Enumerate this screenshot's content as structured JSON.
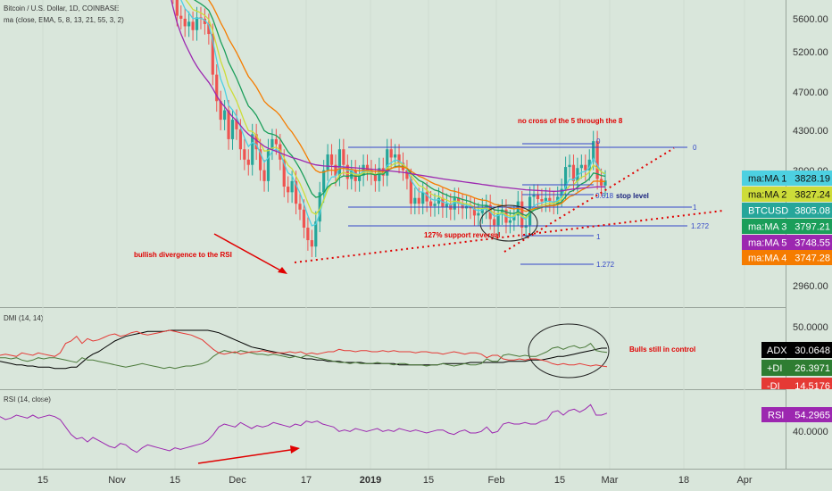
{
  "header": {
    "symbol_line": "Bitcoin / U.S. Dollar, 1D, COINBASE",
    "ma_line": "ma (close, EMA, 5, 8, 13, 21, 55, 3, 2)"
  },
  "panes": {
    "dmi_title": "DMI (14, 14)",
    "rsi_title": "RSI (14, close)"
  },
  "colors": {
    "background": "#d9e6db",
    "up_candle": "#26a69a",
    "down_candle": "#ef5350",
    "ema5": "#4dd0e1",
    "ema8": "#cddc39",
    "ema13": "#1b9e5a",
    "ema21": "#f57c00",
    "ema55": "#9c27b0",
    "annotation": "#e00000",
    "fib": "#3347c8",
    "rsi": "#9c27b0"
  },
  "annotations": {
    "no_cross": "no cross of the 5 through the 8",
    "bullish_div": "bullish divergence to the RSI",
    "support_reversal": "127% support reversal",
    "stop_level": "stop level",
    "bulls_control": "Bulls still in control"
  },
  "fib_labels": {
    "a_zero": "0",
    "a_618": "0.618",
    "a_one": "1",
    "a_1272": "1.272",
    "b_zero": "0",
    "b_one": "1",
    "b_1272": "1.272"
  },
  "chart_data": {
    "type": "candlestick",
    "price_axis_ticks": [
      "5600.00",
      "5200.00",
      "4700.00",
      "4300.00",
      "3900.00",
      "3420.00",
      "2960.00"
    ],
    "dmi_axis_ticks": [
      "50.0000"
    ],
    "rsi_axis_ticks": [
      "40.0000"
    ],
    "time_axis_labels": [
      "15",
      "Nov",
      "15",
      "Dec",
      "17",
      "2019",
      "15",
      "Feb",
      "15",
      "Mar",
      "18",
      "Apr"
    ],
    "price_badges": [
      {
        "label": "ma:MA 1",
        "value": "3828.19",
        "color": "#4dd0e1",
        "text": "#111111"
      },
      {
        "label": "ma:MA 2",
        "value": "3827.24",
        "color": "#cddc39",
        "text": "#111111"
      },
      {
        "label": "BTCUSD",
        "value": "3805.08",
        "color": "#26a69a",
        "text": "#ffffff"
      },
      {
        "label": "ma:MA 3",
        "value": "3797.21",
        "color": "#1b9e5a",
        "text": "#ffffff"
      },
      {
        "label": "ma:MA 5",
        "value": "3748.55",
        "color": "#9c27b0",
        "text": "#ffffff"
      },
      {
        "label": "ma:MA 4",
        "value": "3747.28",
        "color": "#f57c00",
        "text": "#ffffff"
      }
    ],
    "dmi_badges": [
      {
        "label": "ADX",
        "value": "30.0648",
        "color": "#000000"
      },
      {
        "label": "+DI",
        "value": "26.3971",
        "color": "#2e7d32"
      },
      {
        "label": "-DI",
        "value": "14.5176",
        "color": "#e53935"
      }
    ],
    "rsi_badges": [
      {
        "label": "RSI",
        "value": "54.2965",
        "color": "#9c27b0"
      }
    ],
    "price_closes": [
      6350,
      6100,
      5950,
      5640,
      5600,
      5500,
      5560,
      5450,
      5620,
      5600,
      5530,
      5400,
      4900,
      4600,
      4400,
      4500,
      4200,
      4400,
      4300,
      4100,
      4000,
      3950,
      4250,
      4100,
      3900,
      3800,
      4100,
      4200,
      4150,
      4000,
      3750,
      3700,
      3800,
      3600,
      3550,
      3400,
      3300,
      3250,
      3450,
      3700,
      3900,
      4050,
      3950,
      3850,
      4100,
      3950,
      3820,
      3900,
      3800,
      3850,
      3950,
      3900,
      3860,
      3800,
      3920,
      3850,
      4100,
      4020,
      4050,
      3970,
      3900,
      3820,
      3600,
      3650,
      3600,
      3700,
      3620,
      3580,
      3600,
      3650,
      3570,
      3600,
      3550,
      3650,
      3600,
      3560,
      3580,
      3560,
      3500,
      3520,
      3560,
      3590,
      3470,
      3420,
      3510,
      3550,
      3440,
      3460,
      3500,
      3620,
      3400,
      3420,
      3660,
      3680,
      3640,
      3620,
      3650,
      3620,
      3600,
      3660,
      3730,
      3930,
      3950,
      3800,
      3920,
      3950,
      3900,
      4000,
      4180,
      3820,
      3760,
      3805
    ],
    "ema55": [
      6300,
      6000,
      5750,
      5550,
      5400,
      5280,
      5180,
      5080,
      5000,
      4930,
      4870,
      4810,
      4740,
      4660,
      4590,
      4540,
      4480,
      4430,
      4390,
      4340,
      4290,
      4250,
      4220,
      4190,
      4160,
      4130,
      4110,
      4095,
      4080,
      4065,
      4050,
      4035,
      4020,
      4010,
      3998,
      3985,
      3972,
      3960,
      3950,
      3945,
      3940,
      3938,
      3936,
      3933,
      3932,
      3930,
      3928,
      3925,
      3922,
      3919,
      3916,
      3913,
      3910,
      3906,
      3902,
      3898,
      3895,
      3892,
      3888,
      3884,
      3880,
      3875,
      3868,
      3862,
      3856,
      3850,
      3844,
      3838,
      3832,
      3826,
      3820,
      3815,
      3810,
      3805,
      3800,
      3795,
      3790,
      3785,
      3780,
      3775,
      3770,
      3765,
      3760,
      3755,
      3750,
      3746,
      3742,
      3738,
      3734,
      3730,
      3726,
      3722,
      3720,
      3718,
      3716,
      3714,
      3712,
      3710,
      3708,
      3710,
      3712,
      3718,
      3724,
      3728,
      3732,
      3736,
      3739,
      3742,
      3746,
      3748,
      3748,
      3748
    ],
    "rsi": [
      52,
      50,
      51,
      53,
      52,
      51,
      53,
      51,
      52,
      53,
      52,
      50,
      45,
      40,
      37,
      38,
      35,
      38,
      36,
      34,
      32,
      31,
      34,
      33,
      30,
      28,
      31,
      33,
      32,
      31,
      30,
      29,
      31,
      30,
      31,
      32,
      33,
      34,
      36,
      40,
      45,
      47,
      46,
      45,
      48,
      46,
      44,
      46,
      45,
      46,
      48,
      47,
      46,
      45,
      47,
      46,
      49,
      48,
      49,
      47,
      46,
      45,
      42,
      43,
      42,
      44,
      43,
      42,
      43,
      44,
      42,
      43,
      42,
      44,
      43,
      42,
      43,
      42,
      41,
      42,
      43,
      43,
      41,
      40,
      42,
      43,
      41,
      41,
      42,
      45,
      41,
      42,
      47,
      48,
      47,
      47,
      48,
      47,
      47,
      49,
      50,
      55,
      56,
      53,
      56,
      57,
      55,
      57,
      60,
      53,
      53,
      54.3
    ],
    "adx": [
      19,
      18,
      17,
      16,
      16,
      15,
      15,
      14,
      14,
      14,
      13,
      13,
      13,
      14,
      14,
      18,
      22,
      25,
      27,
      30,
      33,
      36,
      38,
      40,
      41,
      42,
      43,
      44,
      44,
      44,
      44,
      45,
      45,
      45,
      45,
      45,
      45,
      45,
      45,
      44,
      43,
      41,
      39,
      37,
      35,
      33,
      31,
      30,
      29,
      28,
      27,
      26,
      25,
      24,
      23,
      22,
      21,
      21,
      20,
      20,
      19,
      19,
      19,
      18,
      18,
      18,
      18,
      17,
      17,
      17,
      17,
      17,
      17,
      16,
      16,
      16,
      16,
      16,
      16,
      16,
      16,
      17,
      17,
      17,
      17,
      17,
      18,
      18,
      18,
      18,
      18,
      18,
      18,
      19,
      19,
      19,
      19,
      20,
      20,
      20,
      21,
      22,
      23,
      23,
      24,
      25,
      26,
      27,
      28,
      29,
      30,
      30
    ],
    "plus_di": [
      22,
      22,
      21,
      22,
      20,
      19,
      20,
      22,
      21,
      22,
      22,
      21,
      20,
      19,
      18,
      22,
      20,
      20,
      19,
      18,
      17,
      16,
      15,
      14,
      15,
      16,
      17,
      16,
      15,
      14,
      13,
      14,
      13,
      14,
      15,
      15,
      16,
      17,
      19,
      23,
      26,
      28,
      27,
      26,
      28,
      27,
      26,
      25,
      25,
      24,
      25,
      24,
      23,
      22,
      23,
      22,
      24,
      23,
      22,
      21,
      20,
      19,
      18,
      18,
      17,
      18,
      17,
      17,
      17,
      18,
      17,
      17,
      16,
      17,
      17,
      16,
      16,
      16,
      15,
      16,
      16,
      17,
      16,
      15,
      16,
      17,
      16,
      16,
      17,
      21,
      19,
      19,
      24,
      25,
      24,
      23,
      24,
      23,
      23,
      25,
      27,
      30,
      31,
      29,
      31,
      32,
      30,
      31,
      34,
      28,
      27,
      26.4
    ],
    "minus_di": [
      24,
      25,
      24,
      23,
      26,
      25,
      24,
      26,
      25,
      24,
      23,
      26,
      34,
      36,
      40,
      34,
      38,
      36,
      37,
      39,
      41,
      42,
      40,
      41,
      43,
      44,
      42,
      41,
      42,
      43,
      44,
      45,
      44,
      43,
      42,
      41,
      39,
      37,
      33,
      29,
      26,
      25,
      26,
      27,
      25,
      26,
      27,
      27,
      28,
      27,
      26,
      26,
      26,
      27,
      26,
      27,
      25,
      26,
      25,
      26,
      27,
      27,
      29,
      28,
      28,
      27,
      28,
      28,
      27,
      27,
      28,
      27,
      28,
      27,
      27,
      27,
      26,
      27,
      27,
      26,
      26,
      25,
      26,
      27,
      26,
      25,
      26,
      26,
      25,
      22,
      24,
      24,
      21,
      20,
      20,
      21,
      20,
      21,
      21,
      20,
      19,
      17,
      16,
      17,
      16,
      16,
      17,
      16,
      15,
      16,
      15,
      14.5
    ]
  }
}
